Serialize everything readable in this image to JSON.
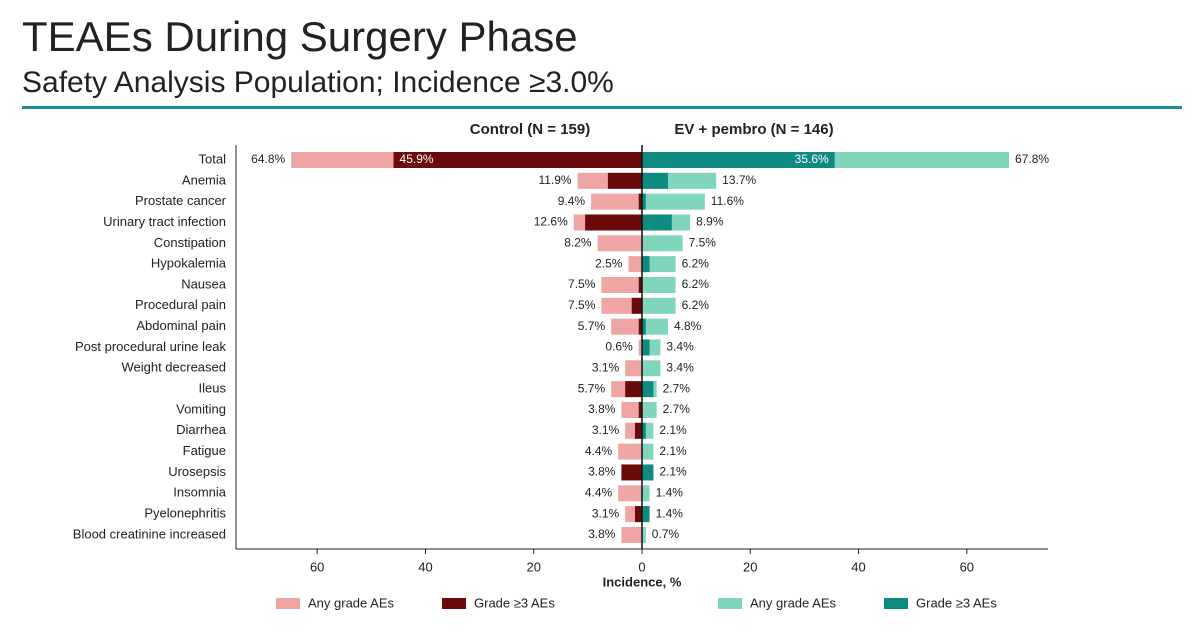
{
  "chart_data": {
    "type": "butterfly-bar",
    "title": "TEAEs During Surgery Phase",
    "subtitle": "Safety Analysis Population; Incidence ≥3.0%",
    "xlabel": "Incidence, %",
    "categories": [
      "Total",
      "Anemia",
      "Prostate cancer",
      "Urinary tract infection",
      "Constipation",
      "Hypokalemia",
      "Nausea",
      "Procedural pain",
      "Abdominal pain",
      "Post procedural urine leak",
      "Weight decreased",
      "Ileus",
      "Vomiting",
      "Diarrhea",
      "Fatigue",
      "Urosepsis",
      "Insomnia",
      "Pyelonephritis",
      "Blood creatinine increased"
    ],
    "panels": [
      {
        "title": "Control (N = 159)",
        "side": "left",
        "xlim": [
          0,
          75
        ],
        "xticks": [
          0,
          20,
          40,
          60
        ],
        "series": [
          {
            "name": "Any grade AEs",
            "color": "#f0a5a5",
            "values": [
              64.8,
              11.9,
              9.4,
              12.6,
              8.2,
              2.5,
              7.5,
              7.5,
              5.7,
              0.6,
              3.1,
              5.7,
              3.8,
              3.1,
              4.4,
              3.8,
              4.4,
              3.1,
              3.8
            ],
            "value_labels": [
              "64.8%",
              "11.9%",
              "9.4%",
              "12.6%",
              "8.2%",
              "2.5%",
              "7.5%",
              "7.5%",
              "5.7%",
              "0.6%",
              "3.1%",
              "5.7%",
              "3.8%",
              "3.1%",
              "4.4%",
              "3.8%",
              "4.4%",
              "3.1%",
              "3.8%"
            ]
          },
          {
            "name": "Grade ≥3 AEs",
            "color": "#6b0a0a",
            "values": [
              45.9,
              6.3,
              0.6,
              10.5,
              0,
              0,
              0.6,
              1.9,
              0.6,
              0,
              0,
              3.1,
              0.6,
              1.3,
              0,
              3.8,
              0,
              1.3,
              0
            ],
            "value_labels": [
              "45.9%",
              null,
              null,
              null,
              null,
              null,
              null,
              null,
              null,
              null,
              null,
              null,
              null,
              null,
              null,
              null,
              null,
              null,
              null
            ]
          }
        ]
      },
      {
        "title": "EV + pembro (N = 146)",
        "side": "right",
        "xlim": [
          0,
          75
        ],
        "xticks": [
          20,
          40,
          60
        ],
        "series": [
          {
            "name": "Any grade AEs",
            "color": "#7fd6bd",
            "values": [
              67.8,
              13.7,
              11.6,
              8.9,
              7.5,
              6.2,
              6.2,
              6.2,
              4.8,
              3.4,
              3.4,
              2.7,
              2.7,
              2.1,
              2.1,
              2.1,
              1.4,
              1.4,
              0.7
            ],
            "value_labels": [
              "67.8%",
              "13.7%",
              "11.6%",
              "8.9%",
              "7.5%",
              "6.2%",
              "6.2%",
              "6.2%",
              "4.8%",
              "3.4%",
              "3.4%",
              "2.7%",
              "2.7%",
              "2.1%",
              "2.1%",
              "2.1%",
              "1.4%",
              "1.4%",
              "0.7%"
            ]
          },
          {
            "name": "Grade ≥3 AEs",
            "color": "#0f8a80",
            "values": [
              35.6,
              4.8,
              0.7,
              5.5,
              0,
              1.4,
              0,
              0,
              0.7,
              1.4,
              0,
              2.1,
              0,
              0.7,
              0,
              2.1,
              0,
              1.4,
              0
            ],
            "value_labels": [
              "35.6%",
              null,
              null,
              null,
              null,
              null,
              null,
              null,
              null,
              null,
              null,
              null,
              null,
              null,
              null,
              null,
              null,
              null,
              null
            ]
          }
        ]
      }
    ]
  }
}
